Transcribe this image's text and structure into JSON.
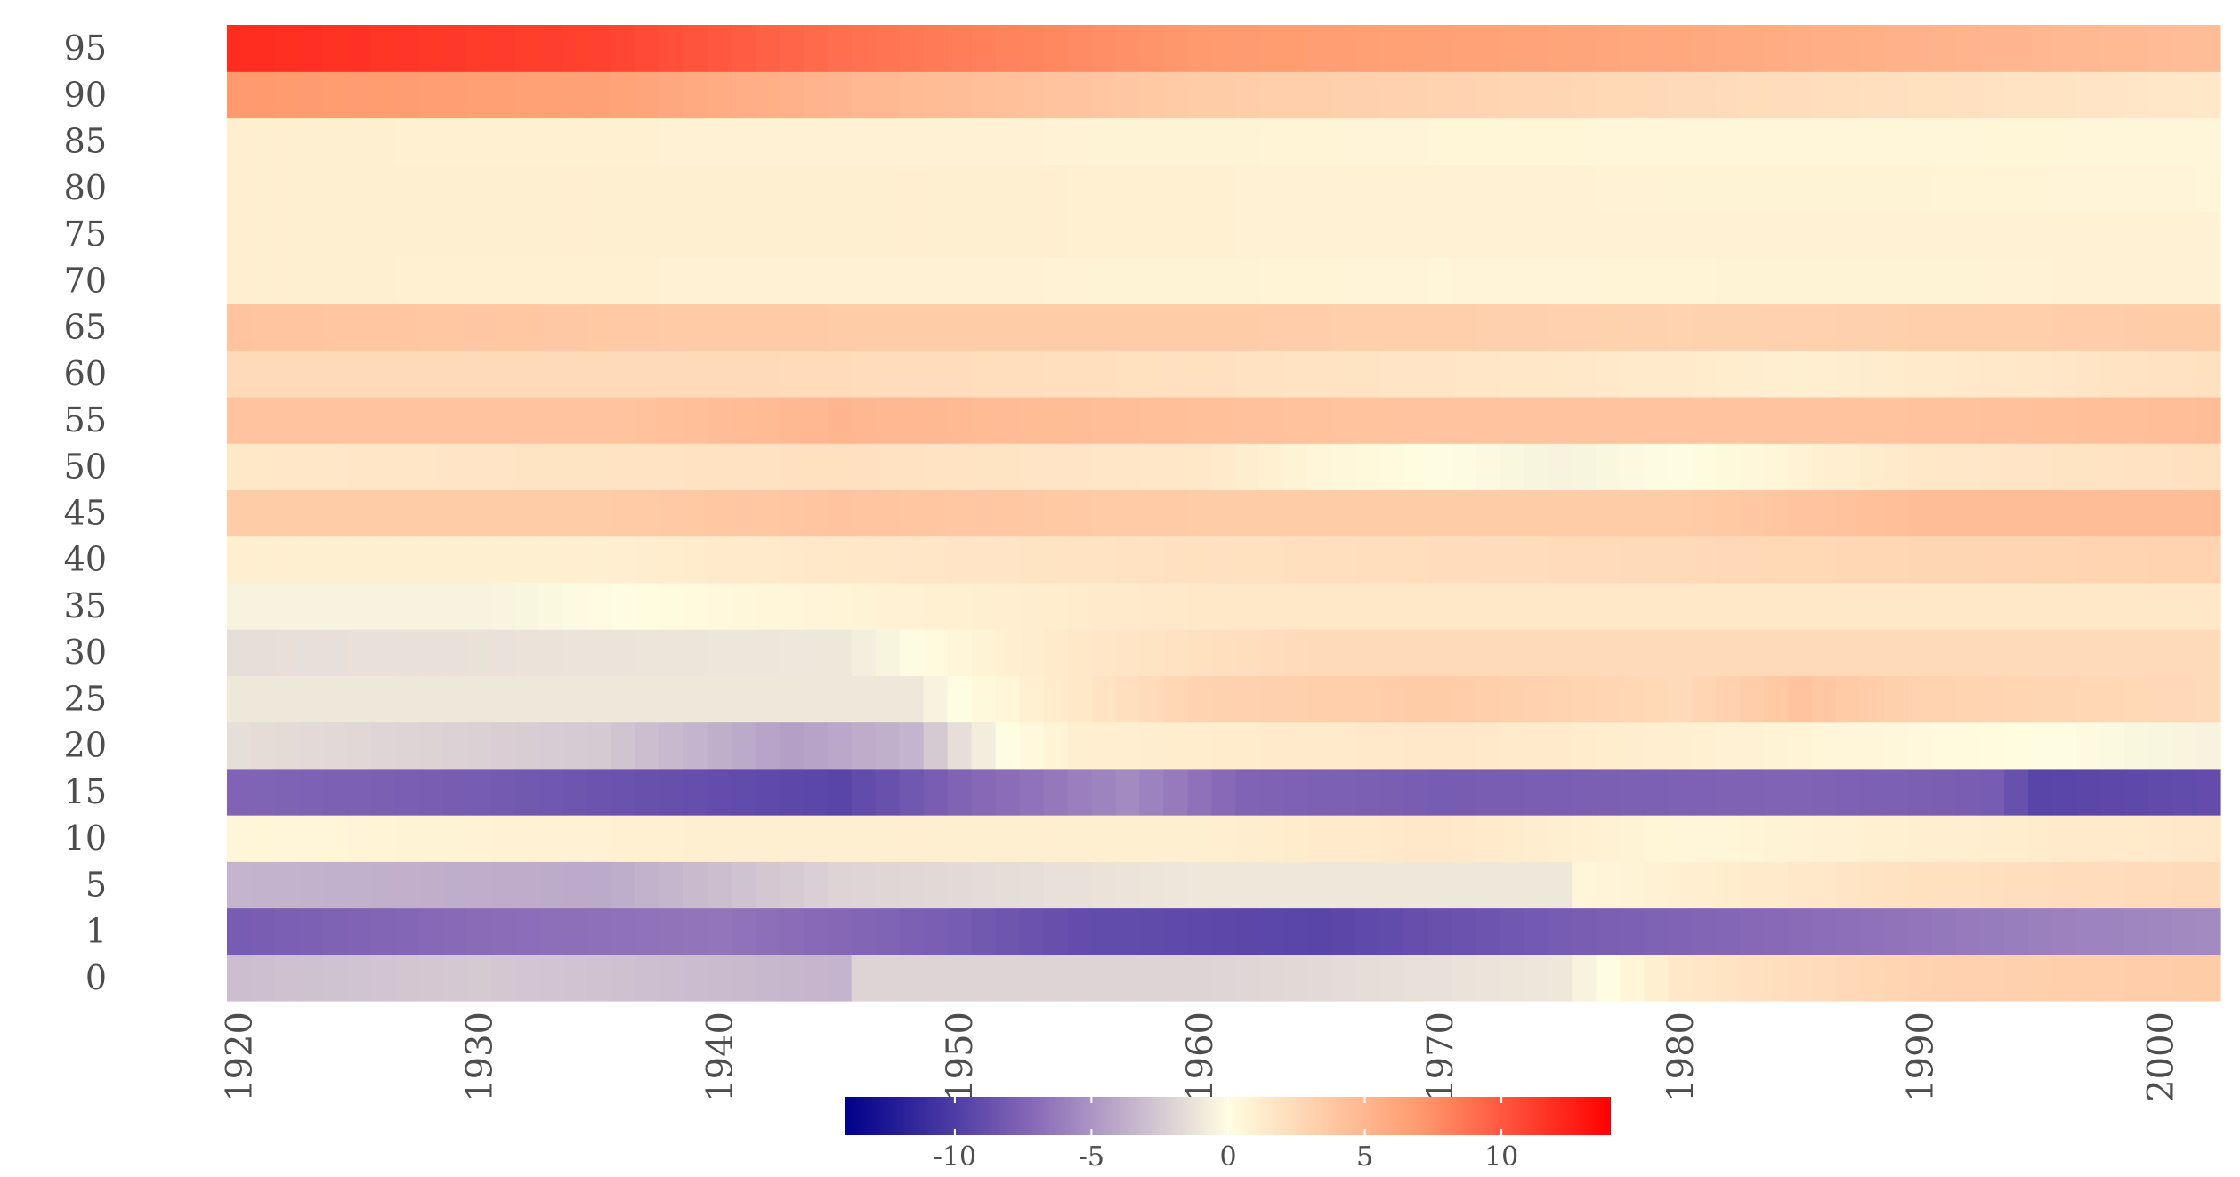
{
  "chart_data": {
    "type": "heatmap",
    "title": "",
    "xlabel": "",
    "ylabel": "",
    "x_range": [
      1920,
      2002
    ],
    "x_ticks": [
      "1920",
      "1930",
      "1940",
      "1950",
      "1960",
      "1970",
      "1980",
      "1990",
      "2000"
    ],
    "y_categories": [
      "0",
      "1",
      "5",
      "10",
      "15",
      "20",
      "25",
      "30",
      "35",
      "40",
      "45",
      "50",
      "55",
      "60",
      "65",
      "70",
      "75",
      "80",
      "85",
      "90",
      "95"
    ],
    "colorbar": {
      "range": [
        -14,
        14
      ],
      "ticks": [
        "-10",
        "-5",
        "0",
        "5",
        "10"
      ],
      "tick_values": [
        -10,
        -5,
        0,
        5,
        10
      ],
      "low_color": "#00008b",
      "mid_low_color": "#8a6bb8",
      "mid_color": "#fffde1",
      "mid_high_color": "#ff9a6e",
      "high_color": "#ff0000",
      "placement": "bottom"
    },
    "row_keypoints": [
      {
        "age": "0",
        "years": [
          1920,
          1930,
          1945,
          1946,
          1960,
          1975,
          1980,
          1990,
          2002
        ],
        "values": [
          -3,
          -2.5,
          -3.5,
          -2,
          -2,
          -1,
          1.5,
          3,
          3.5
        ]
      },
      {
        "age": "1",
        "years": [
          1920,
          1930,
          1940,
          1950,
          1955,
          1965,
          1975,
          1985,
          1995,
          2002
        ],
        "values": [
          -8,
          -7,
          -6.5,
          -8,
          -9,
          -9.5,
          -8,
          -7,
          -6,
          -5.5
        ]
      },
      {
        "age": "5",
        "years": [
          1920,
          1935,
          1945,
          1960,
          1975,
          1976,
          1990,
          2002
        ],
        "values": [
          -3.5,
          -4,
          -2,
          -1,
          -1,
          0.5,
          2,
          2.5
        ]
      },
      {
        "age": "10",
        "years": [
          1920,
          1940,
          1960,
          1970,
          1980,
          1990,
          2002
        ],
        "values": [
          0.5,
          1,
          1,
          1.5,
          0.5,
          1,
          1.5
        ]
      },
      {
        "age": "15",
        "years": [
          1920,
          1930,
          1945,
          1950,
          1957,
          1962,
          1970,
          1985,
          1993,
          1995,
          2002
        ],
        "values": [
          -7.5,
          -8,
          -9.5,
          -7.5,
          -5.5,
          -7.5,
          -8,
          -7.5,
          -8,
          -9.5,
          -9
        ]
      },
      {
        "age": "20",
        "years": [
          1920,
          1935,
          1943,
          1948,
          1950,
          1952,
          1955,
          1970,
          1980,
          1995,
          2002
        ],
        "values": [
          -1.5,
          -2.5,
          -4.5,
          -3.5,
          -1.5,
          0,
          1,
          1.5,
          1,
          0,
          -0.5
        ]
      },
      {
        "age": "25",
        "years": [
          1920,
          1940,
          1948,
          1950,
          1955,
          1960,
          1970,
          1980,
          1985,
          1990,
          2002
        ],
        "values": [
          -1,
          -1,
          -1,
          0,
          1.5,
          3,
          3.5,
          2.5,
          4,
          3,
          2.5
        ]
      },
      {
        "age": "30",
        "years": [
          1920,
          1945,
          1950,
          1955,
          1965,
          1980,
          2002
        ],
        "values": [
          -1.5,
          -1,
          0.5,
          1.5,
          2.5,
          2.5,
          2.5
        ]
      },
      {
        "age": "35",
        "years": [
          1920,
          1930,
          1942,
          1960,
          1980,
          2002
        ],
        "values": [
          -0.5,
          -0.5,
          0.5,
          1.5,
          1.5,
          1.5
        ]
      },
      {
        "age": "40",
        "years": [
          1920,
          1935,
          1945,
          1960,
          1980,
          2002
        ],
        "values": [
          1,
          1,
          1.5,
          2,
          2.5,
          3
        ]
      },
      {
        "age": "45",
        "years": [
          1920,
          1935,
          1945,
          1960,
          1980,
          1990,
          2002
        ],
        "values": [
          3.5,
          3.5,
          4,
          3.5,
          3.5,
          4.5,
          4.5
        ]
      },
      {
        "age": "50",
        "years": [
          1920,
          1945,
          1960,
          1965,
          1970,
          1975,
          1980,
          1990,
          2002
        ],
        "values": [
          1.5,
          2,
          1.5,
          0.5,
          0,
          -0.5,
          0,
          1.5,
          2
        ]
      },
      {
        "age": "55",
        "years": [
          1920,
          1935,
          1945,
          1955,
          1970,
          1985,
          2002
        ],
        "values": [
          4,
          4,
          5,
          4.5,
          4,
          4,
          4.5
        ]
      },
      {
        "age": "60",
        "years": [
          1920,
          1940,
          1960,
          1975,
          1985,
          2002
        ],
        "values": [
          2.5,
          2.5,
          2,
          1.5,
          1,
          2
        ]
      },
      {
        "age": "65",
        "years": [
          1920,
          1945,
          1960,
          1980,
          2002
        ],
        "values": [
          4,
          3.5,
          3.5,
          3,
          3.5
        ]
      },
      {
        "age": "70",
        "years": [
          1920,
          1950,
          1970,
          2002
        ],
        "values": [
          1,
          0.8,
          0.6,
          0.8
        ]
      },
      {
        "age": "75",
        "years": [
          1920,
          1950,
          1970,
          2002
        ],
        "values": [
          1,
          1,
          0.8,
          0.8
        ]
      },
      {
        "age": "80",
        "years": [
          1920,
          1950,
          1970,
          2002
        ],
        "values": [
          1,
          1,
          0.8,
          0.6
        ]
      },
      {
        "age": "85",
        "years": [
          1920,
          1950,
          1970,
          2002
        ],
        "values": [
          1,
          0.8,
          0.6,
          0.5
        ]
      },
      {
        "age": "90",
        "years": [
          1920,
          1935,
          1945,
          1960,
          1980,
          2002
        ],
        "values": [
          7,
          6.5,
          5,
          3.5,
          2.5,
          1.5
        ]
      },
      {
        "age": "95",
        "years": [
          1920,
          1935,
          1945,
          1960,
          1980,
          2002
        ],
        "values": [
          12,
          11,
          9,
          7,
          6,
          4.5
        ]
      }
    ]
  }
}
